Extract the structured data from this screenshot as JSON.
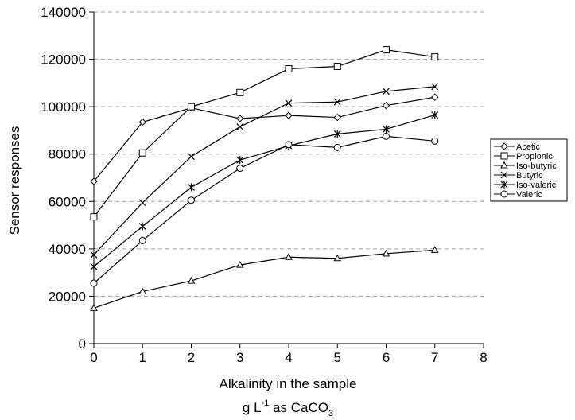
{
  "chart_data": {
    "type": "line",
    "x": [
      0,
      1,
      2,
      3,
      4,
      5,
      6,
      7
    ],
    "xlim": [
      0,
      8
    ],
    "ylim": [
      0,
      140000
    ],
    "xticks": [
      0,
      1,
      2,
      3,
      4,
      5,
      6,
      7,
      8
    ],
    "yticks": [
      0,
      20000,
      40000,
      60000,
      80000,
      100000,
      120000,
      140000
    ],
    "xlabel": "Alkalinity in the sample",
    "xlabel_line2": {
      "prefix": "g L",
      "sup": "-1",
      "middle": " as CaCO",
      "sub": "3"
    },
    "ylabel": "Sensor responses",
    "grid": "horizontal dashed",
    "legend_position": "right",
    "series": [
      {
        "name": "Acetic",
        "marker": "diamond",
        "values": [
          68500,
          93500,
          99500,
          95000,
          96300,
          95500,
          100500,
          104000
        ]
      },
      {
        "name": "Propionic",
        "marker": "square",
        "values": [
          53500,
          80500,
          100000,
          106000,
          116000,
          117000,
          124000,
          121000
        ]
      },
      {
        "name": "Iso-butyric",
        "marker": "triangle",
        "values": [
          15000,
          22000,
          26500,
          33200,
          36500,
          36000,
          38000,
          39500
        ]
      },
      {
        "name": "Butyric",
        "marker": "x",
        "values": [
          37500,
          59500,
          79000,
          91500,
          101500,
          102000,
          106500,
          108500
        ]
      },
      {
        "name": "Iso-valeric",
        "marker": "star",
        "values": [
          32500,
          49500,
          66000,
          77500,
          83500,
          88500,
          90500,
          96500
        ]
      },
      {
        "name": "Valeric",
        "marker": "circle",
        "values": [
          25500,
          43500,
          60500,
          74000,
          84000,
          82800,
          87500,
          85500
        ]
      }
    ]
  }
}
